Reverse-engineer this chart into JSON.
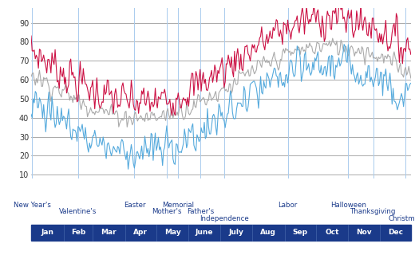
{
  "background_color": "#ffffff",
  "plot_bg_color": "#ffffff",
  "grid_color": "#888888",
  "x_axis_bar_color": "#1a3a8a",
  "holiday_label_color": "#1a3a8a",
  "vline_color": "#aaccee",
  "ylim": [
    8,
    98
  ],
  "yticks": [
    10,
    20,
    30,
    40,
    50,
    60,
    70,
    80,
    90
  ],
  "ytick_fontsize": 7,
  "months": [
    "Jan",
    "Feb",
    "Mar",
    "Apr",
    "May",
    "June",
    "July",
    "Aug",
    "Sep",
    "Oct",
    "Nov",
    "Dec"
  ],
  "month_starts": [
    0,
    31,
    59,
    90,
    120,
    151,
    181,
    212,
    243,
    273,
    304,
    334
  ],
  "n_days": 365,
  "holidays_row0": [
    {
      "name": "New Year's",
      "day": 1
    },
    {
      "name": "Easter",
      "day": 99
    },
    {
      "name": "Memorial",
      "day": 141
    },
    {
      "name": "Labor",
      "day": 246
    },
    {
      "name": "Halloween",
      "day": 304
    }
  ],
  "holidays_row1": [
    {
      "name": "Valentine's",
      "day": 45
    },
    {
      "name": "Mother's",
      "day": 130
    },
    {
      "name": "Father's",
      "day": 162
    },
    {
      "name": "Thanksgiving",
      "day": 328
    }
  ],
  "holidays_row2": [
    {
      "name": "Independence",
      "day": 185
    },
    {
      "name": "Christmas",
      "day": 359
    }
  ],
  "holiday_vline_days": [
    1,
    45,
    99,
    130,
    141,
    162,
    185,
    246,
    304,
    328,
    359
  ],
  "line_high_color": "#cc1144",
  "line_avg_color": "#aaaaaa",
  "line_low_color": "#55aadd",
  "line_width": 0.8
}
